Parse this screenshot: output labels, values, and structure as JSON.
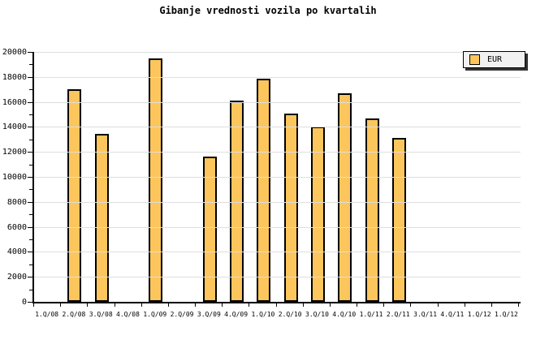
{
  "chart_data": {
    "type": "bar",
    "title": "Gibanje vrednosti vozila po kvartalih",
    "categories": [
      "1.Q/08",
      "2.Q/08",
      "3.Q/08",
      "4.Q/08",
      "1.Q/09",
      "2.Q/09",
      "3.Q/09",
      "4.Q/09",
      "1.Q/10",
      "2.Q/10",
      "3.Q/10",
      "4.Q/10",
      "1.Q/11",
      "2.Q/11",
      "3.Q/11",
      "4.Q/11",
      "1.Q/12",
      "1.Q/12"
    ],
    "series": [
      {
        "name": "EUR",
        "values": [
          null,
          17000,
          13450,
          null,
          19500,
          null,
          11650,
          16100,
          17850,
          15100,
          14000,
          16700,
          14650,
          13100,
          null,
          null,
          null,
          null
        ]
      }
    ],
    "xlabel": "",
    "ylabel": "",
    "ylim": [
      0,
      20000
    ],
    "ytick_step": 2000,
    "y_minor_step": 1000,
    "grid": "horizontal",
    "legend": {
      "position": "top-right",
      "entries": [
        "EUR"
      ]
    },
    "colors": {
      "background": "#FFFFFF",
      "bar_fill": "#FCC65C",
      "bar_border": "#000000",
      "gridline": "#DEDEDE",
      "axis": "#000000",
      "text": "#000000",
      "legend_bg": "#F1F1F1",
      "legend_border": "#000000",
      "legend_shadow": "#333333"
    }
  }
}
